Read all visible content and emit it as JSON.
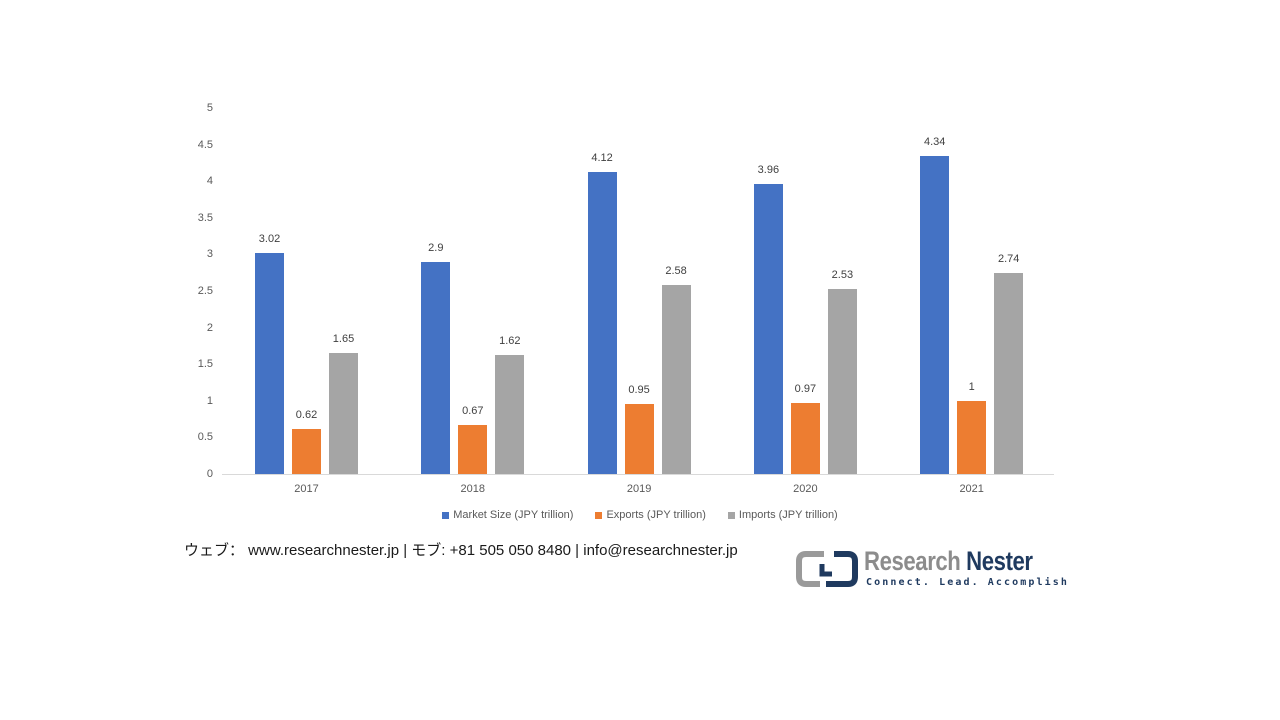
{
  "chart_data": {
    "type": "bar",
    "title": "",
    "xlabel": "",
    "ylabel": "",
    "ylim": [
      0,
      5
    ],
    "yticks": [
      "0",
      "0.5",
      "1",
      "1.5",
      "2",
      "2.5",
      "3",
      "3.5",
      "4",
      "4.5",
      "5"
    ],
    "categories": [
      "2017",
      "2018",
      "2019",
      "2020",
      "2021"
    ],
    "series": [
      {
        "name": "Market Size (JPY trillion)",
        "color": "#4472c4",
        "values": [
          3.02,
          2.9,
          4.12,
          3.96,
          4.34
        ],
        "labels": [
          "3.02",
          "2.9",
          "4.12",
          "3.96",
          "4.34"
        ]
      },
      {
        "name": "Exports (JPY trillion)",
        "color": "#ed7d31",
        "values": [
          0.62,
          0.67,
          0.95,
          0.97,
          1
        ],
        "labels": [
          "0.62",
          "0.67",
          "0.95",
          "0.97",
          "1"
        ]
      },
      {
        "name": "Imports (JPY trillion)",
        "color": "#a5a5a5",
        "values": [
          1.65,
          1.62,
          2.58,
          2.53,
          2.74
        ],
        "labels": [
          "1.65",
          "1.62",
          "2.58",
          "2.53",
          "2.74"
        ]
      }
    ],
    "grid": false,
    "legend_position": "bottom"
  },
  "legend": [
    {
      "label": "Market Size (JPY trillion)",
      "color": "#4472c4"
    },
    {
      "label": "Exports (JPY trillion)",
      "color": "#ed7d31"
    },
    {
      "label": "Imports (JPY trillion)",
      "color": "#a5a5a5"
    }
  ],
  "footer": {
    "contact": "ウェブ：  www.researchnester.jp  | モブ: +81 505 050 8480 | info@researchnester.jp"
  },
  "logo": {
    "name_part1": "Research",
    "name_part2": "Nester",
    "tagline": "Connect. Lead. Accomplish"
  }
}
